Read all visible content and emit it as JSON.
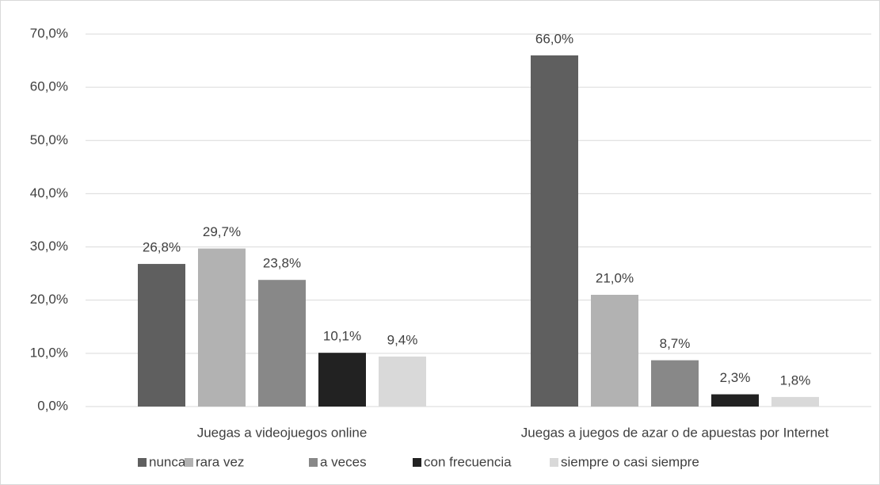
{
  "chart_data": {
    "type": "bar",
    "categories": [
      "Juegas a videojuegos online",
      "Juegas a juegos de azar o de apuestas por Internet"
    ],
    "series": [
      {
        "name": "nunca",
        "color": "#5f5f5f",
        "values": [
          26.8,
          66.0
        ],
        "value_labels": [
          "26,8%",
          "66,0%"
        ]
      },
      {
        "name": "rara vez",
        "color": "#b2b2b2",
        "values": [
          29.7,
          21.0
        ],
        "value_labels": [
          "29,7%",
          "21,0%"
        ]
      },
      {
        "name": "a veces",
        "color": "#888888",
        "values": [
          23.8,
          8.7
        ],
        "value_labels": [
          "23,8%",
          "8,7%"
        ]
      },
      {
        "name": "con frecuencia",
        "color": "#222222",
        "values": [
          10.1,
          2.3
        ],
        "value_labels": [
          "10,1%",
          "2,3%"
        ]
      },
      {
        "name": "siempre o casi siempre",
        "color": "#d9d9d9",
        "values": [
          9.4,
          1.8
        ],
        "value_labels": [
          "9,4%",
          "1,8%"
        ]
      }
    ],
    "ylim": [
      0,
      70
    ],
    "yticks": [
      {
        "value": 0,
        "label": "0,0%"
      },
      {
        "value": 10,
        "label": "10,0%"
      },
      {
        "value": 20,
        "label": "20,0%"
      },
      {
        "value": 30,
        "label": "30,0%"
      },
      {
        "value": 40,
        "label": "40,0%"
      },
      {
        "value": 50,
        "label": "50,0%"
      },
      {
        "value": 60,
        "label": "60,0%"
      },
      {
        "value": 70,
        "label": "70,0%"
      }
    ],
    "grid": true,
    "legend": "bottom"
  }
}
